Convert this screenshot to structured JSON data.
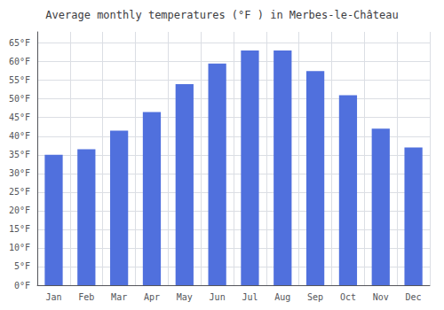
{
  "chart_data": {
    "type": "bar",
    "title": "Average monthly temperatures (°F ) in Merbes-le-Château",
    "categories": [
      "Jan",
      "Feb",
      "Mar",
      "Apr",
      "May",
      "Jun",
      "Jul",
      "Aug",
      "Sep",
      "Oct",
      "Nov",
      "Dec"
    ],
    "values": [
      35.0,
      36.5,
      41.5,
      46.5,
      54.0,
      59.5,
      63.0,
      63.0,
      57.5,
      51.0,
      42.0,
      37.0
    ],
    "ylim": [
      0,
      68
    ],
    "yticks": [
      {
        "value": 0,
        "label": "0°F"
      },
      {
        "value": 5,
        "label": "5°F"
      },
      {
        "value": 10,
        "label": "10°F"
      },
      {
        "value": 15,
        "label": "15°F"
      },
      {
        "value": 20,
        "label": "20°F"
      },
      {
        "value": 25,
        "label": "25°F"
      },
      {
        "value": 30,
        "label": "30°F"
      },
      {
        "value": 35,
        "label": "35°F"
      },
      {
        "value": 40,
        "label": "40°F"
      },
      {
        "value": 45,
        "label": "45°F"
      },
      {
        "value": 50,
        "label": "50°F"
      },
      {
        "value": 55,
        "label": "55°F"
      },
      {
        "value": 60,
        "label": "60°F"
      },
      {
        "value": 65,
        "label": "65°F"
      }
    ],
    "grid": true
  }
}
